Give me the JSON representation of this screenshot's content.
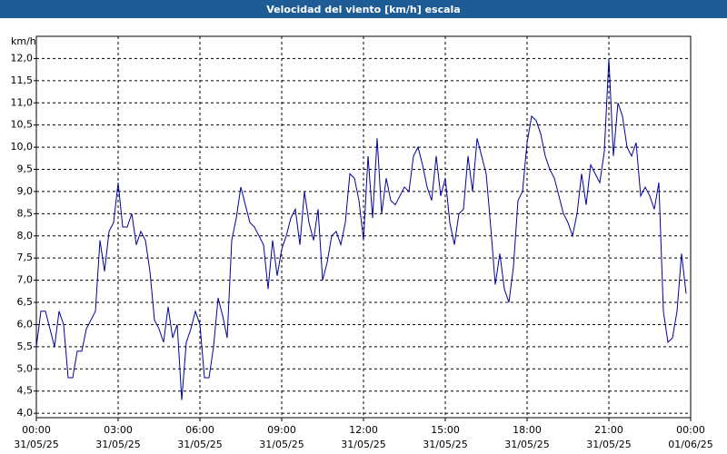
{
  "chart_data": {
    "type": "line",
    "title": "Velocidad del viento [km/h] escala",
    "y_unit": "km/h",
    "x": [
      0,
      10,
      20,
      30,
      40,
      50,
      60,
      70,
      80,
      90,
      100,
      110,
      120,
      130,
      140,
      150,
      160,
      170,
      180,
      190,
      200,
      210,
      220,
      230,
      240,
      250,
      260,
      270,
      280,
      290,
      300,
      310,
      320,
      330,
      340,
      350,
      360,
      370,
      380,
      390,
      400,
      410,
      420,
      430,
      440,
      450,
      460,
      470,
      480,
      490,
      500,
      510,
      520,
      530,
      540,
      550,
      560,
      570,
      580,
      590,
      600,
      610,
      620,
      630,
      640,
      650,
      660,
      670,
      680,
      690,
      700,
      710,
      720,
      730,
      740,
      750,
      760,
      770,
      780,
      790,
      800,
      810,
      820,
      830,
      840,
      850,
      860,
      870,
      880,
      890,
      900,
      910,
      920,
      930,
      940,
      950,
      960,
      970,
      980,
      990,
      1000,
      1010,
      1020,
      1030,
      1040,
      1050,
      1060,
      1070,
      1080,
      1090,
      1100,
      1110,
      1120,
      1130,
      1140,
      1150,
      1160,
      1170,
      1180,
      1190,
      1200,
      1210,
      1220,
      1230,
      1240,
      1250,
      1260,
      1270,
      1280,
      1290,
      1300,
      1310,
      1320,
      1330,
      1340,
      1350,
      1360,
      1370,
      1380,
      1390,
      1400,
      1410,
      1420,
      1430
    ],
    "series": [
      {
        "name": "Velocidad del viento",
        "color": "#00009c",
        "values": [
          5.5,
          6.3,
          6.3,
          5.9,
          5.5,
          6.3,
          6.0,
          4.8,
          4.8,
          5.4,
          5.4,
          5.9,
          6.1,
          6.3,
          7.9,
          7.2,
          8.1,
          8.3,
          9.2,
          8.2,
          8.2,
          8.5,
          7.8,
          8.1,
          7.9,
          7.2,
          6.1,
          5.9,
          5.6,
          6.4,
          5.7,
          6.0,
          4.3,
          5.6,
          5.9,
          6.3,
          6.0,
          4.8,
          4.8,
          5.5,
          6.6,
          6.2,
          5.7,
          7.9,
          8.4,
          9.1,
          8.7,
          8.3,
          8.2,
          8.0,
          7.8,
          6.8,
          7.9,
          7.1,
          7.7,
          8.0,
          8.4,
          8.6,
          7.8,
          9.0,
          8.3,
          7.9,
          8.6,
          7.0,
          7.4,
          8.0,
          8.1,
          7.8,
          8.3,
          9.4,
          9.3,
          8.8,
          7.9,
          9.8,
          8.4,
          10.2,
          8.5,
          9.3,
          8.8,
          8.7,
          8.9,
          9.1,
          9.0,
          9.8,
          10.0,
          9.6,
          9.1,
          8.8,
          9.8,
          8.9,
          9.3,
          8.3,
          7.8,
          8.5,
          8.6,
          9.8,
          9.0,
          10.2,
          9.8,
          9.4,
          8.2,
          6.9,
          7.6,
          6.8,
          6.5,
          7.3,
          8.8,
          9.0,
          10.1,
          10.7,
          10.6,
          10.3,
          9.8,
          9.5,
          9.3,
          8.9,
          8.5,
          8.3,
          8.0,
          8.5,
          9.4,
          8.7,
          9.6,
          9.4,
          9.2,
          9.9,
          12.0,
          9.8,
          11.0,
          10.7,
          10.0,
          9.8,
          10.1,
          8.9,
          9.1,
          8.9,
          8.6,
          9.2,
          6.3,
          5.6,
          5.7,
          6.3,
          7.6,
          6.7
        ]
      }
    ],
    "xlim": [
      0,
      1440
    ],
    "xticks": [
      {
        "value": 0,
        "label": "00:00",
        "date": "31/05/25"
      },
      {
        "value": 180,
        "label": "03:00",
        "date": "31/05/25"
      },
      {
        "value": 360,
        "label": "06:00",
        "date": "31/05/25"
      },
      {
        "value": 540,
        "label": "09:00",
        "date": "31/05/25"
      },
      {
        "value": 720,
        "label": "12:00",
        "date": "31/05/25"
      },
      {
        "value": 900,
        "label": "15:00",
        "date": "31/05/25"
      },
      {
        "value": 1080,
        "label": "18:00",
        "date": "31/05/25"
      },
      {
        "value": 1260,
        "label": "21:00",
        "date": "31/05/25"
      },
      {
        "value": 1440,
        "label": "00:00",
        "date": "01/06/25"
      }
    ],
    "ylim": [
      3.9,
      12.5
    ],
    "yticks": [
      {
        "value": 4,
        "label": "4,0"
      },
      {
        "value": 4.5,
        "label": "4,5"
      },
      {
        "value": 5,
        "label": "5,0"
      },
      {
        "value": 5.5,
        "label": "5,5"
      },
      {
        "value": 6,
        "label": "6,0"
      },
      {
        "value": 6.5,
        "label": "6,5"
      },
      {
        "value": 7,
        "label": "7,0"
      },
      {
        "value": 7.5,
        "label": "7,5"
      },
      {
        "value": 8,
        "label": "8,0"
      },
      {
        "value": 8.5,
        "label": "8,5"
      },
      {
        "value": 9,
        "label": "9,0"
      },
      {
        "value": 9.5,
        "label": "9,5"
      },
      {
        "value": 10,
        "label": "10,0"
      },
      {
        "value": 10.5,
        "label": "10,5"
      },
      {
        "value": 11,
        "label": "11,0"
      },
      {
        "value": 11.5,
        "label": "11,5"
      },
      {
        "value": 12,
        "label": "12,0"
      }
    ],
    "grid": true
  }
}
